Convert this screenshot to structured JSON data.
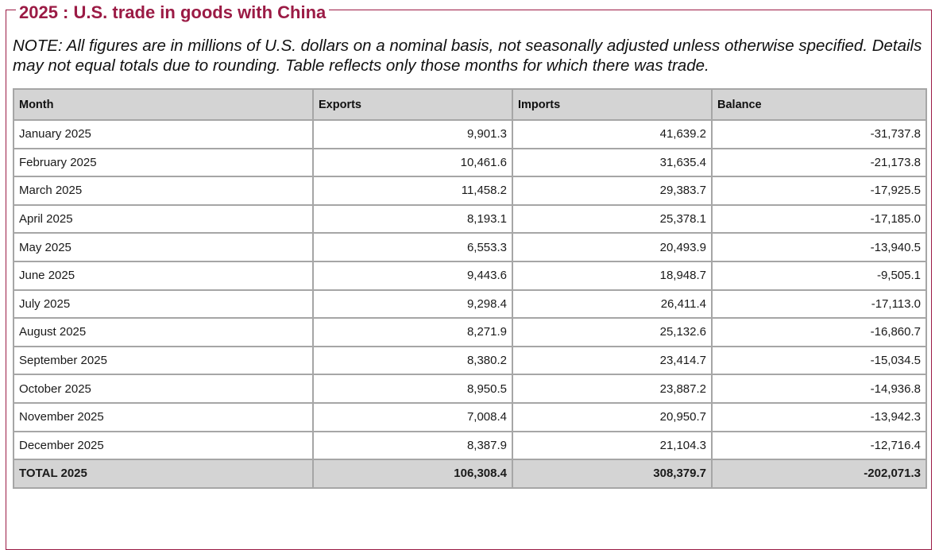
{
  "title": "2025 : U.S. trade in goods with China",
  "note": "NOTE: All figures are in millions of U.S. dollars on a nominal basis, not seasonally adjusted unless otherwise specified. Details may not equal totals due to rounding. Table reflects only those months for which there was trade.",
  "colors": {
    "accent": "#9b1b45",
    "header_bg": "#d4d4d4",
    "border": "#a6a6a6"
  },
  "table": {
    "headers": [
      "Month",
      "Exports",
      "Imports",
      "Balance"
    ],
    "rows": [
      [
        "January 2025",
        "9,901.3",
        "41,639.2",
        "-31,737.8"
      ],
      [
        "February 2025",
        "10,461.6",
        "31,635.4",
        "-21,173.8"
      ],
      [
        "March 2025",
        "11,458.2",
        "29,383.7",
        "-17,925.5"
      ],
      [
        "April 2025",
        "8,193.1",
        "25,378.1",
        "-17,185.0"
      ],
      [
        "May 2025",
        "6,553.3",
        "20,493.9",
        "-13,940.5"
      ],
      [
        "June 2025",
        "9,443.6",
        "18,948.7",
        "-9,505.1"
      ],
      [
        "July 2025",
        "9,298.4",
        "26,411.4",
        "-17,113.0"
      ],
      [
        "August 2025",
        "8,271.9",
        "25,132.6",
        "-16,860.7"
      ],
      [
        "September 2025",
        "8,380.2",
        "23,414.7",
        "-15,034.5"
      ],
      [
        "October 2025",
        "8,950.5",
        "23,887.2",
        "-14,936.8"
      ],
      [
        "November 2025",
        "7,008.4",
        "20,950.7",
        "-13,942.3"
      ],
      [
        "December 2025",
        "8,387.9",
        "21,104.3",
        "-12,716.4"
      ]
    ],
    "total": [
      "TOTAL 2025",
      "106,308.4",
      "308,379.7",
      "-202,071.3"
    ]
  }
}
